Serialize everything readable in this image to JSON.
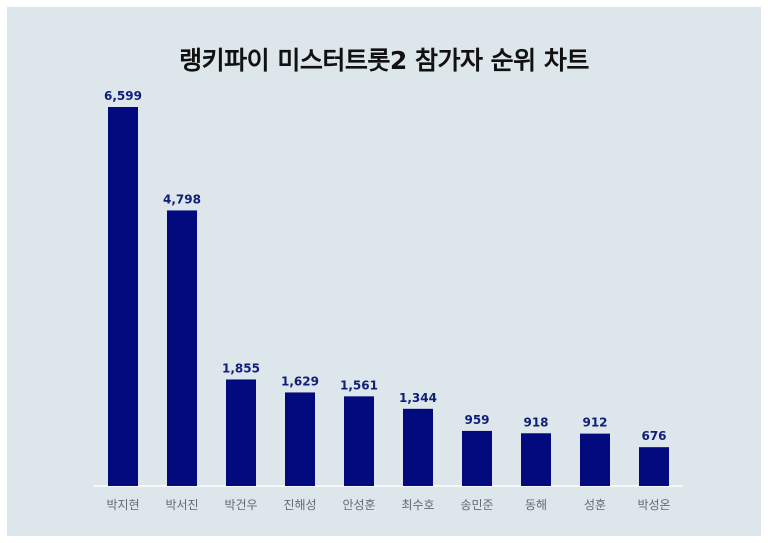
{
  "chart_data": {
    "type": "bar",
    "title": "랭키파이 미스터트롯2 참가자 순위 차트",
    "categories": [
      "박지현",
      "박서진",
      "박건우",
      "진해성",
      "안성훈",
      "최수호",
      "송민준",
      "동해",
      "성훈",
      "박성온"
    ],
    "values": [
      6599,
      4798,
      1855,
      1629,
      1561,
      1344,
      959,
      918,
      912,
      676
    ],
    "value_labels": [
      "6,599",
      "4,798",
      "1,855",
      "1,629",
      "1,561",
      "1,344",
      "959",
      "918",
      "912",
      "676"
    ],
    "xlabel": "",
    "ylabel": "",
    "ylim": [
      0,
      6599
    ],
    "grid": false,
    "legend": "none",
    "colors": {
      "background": "#dde6ea",
      "bar": "#020a7d",
      "value_label": "#10207a",
      "category_label": "#666a70",
      "baseline": "#ffffff"
    }
  }
}
